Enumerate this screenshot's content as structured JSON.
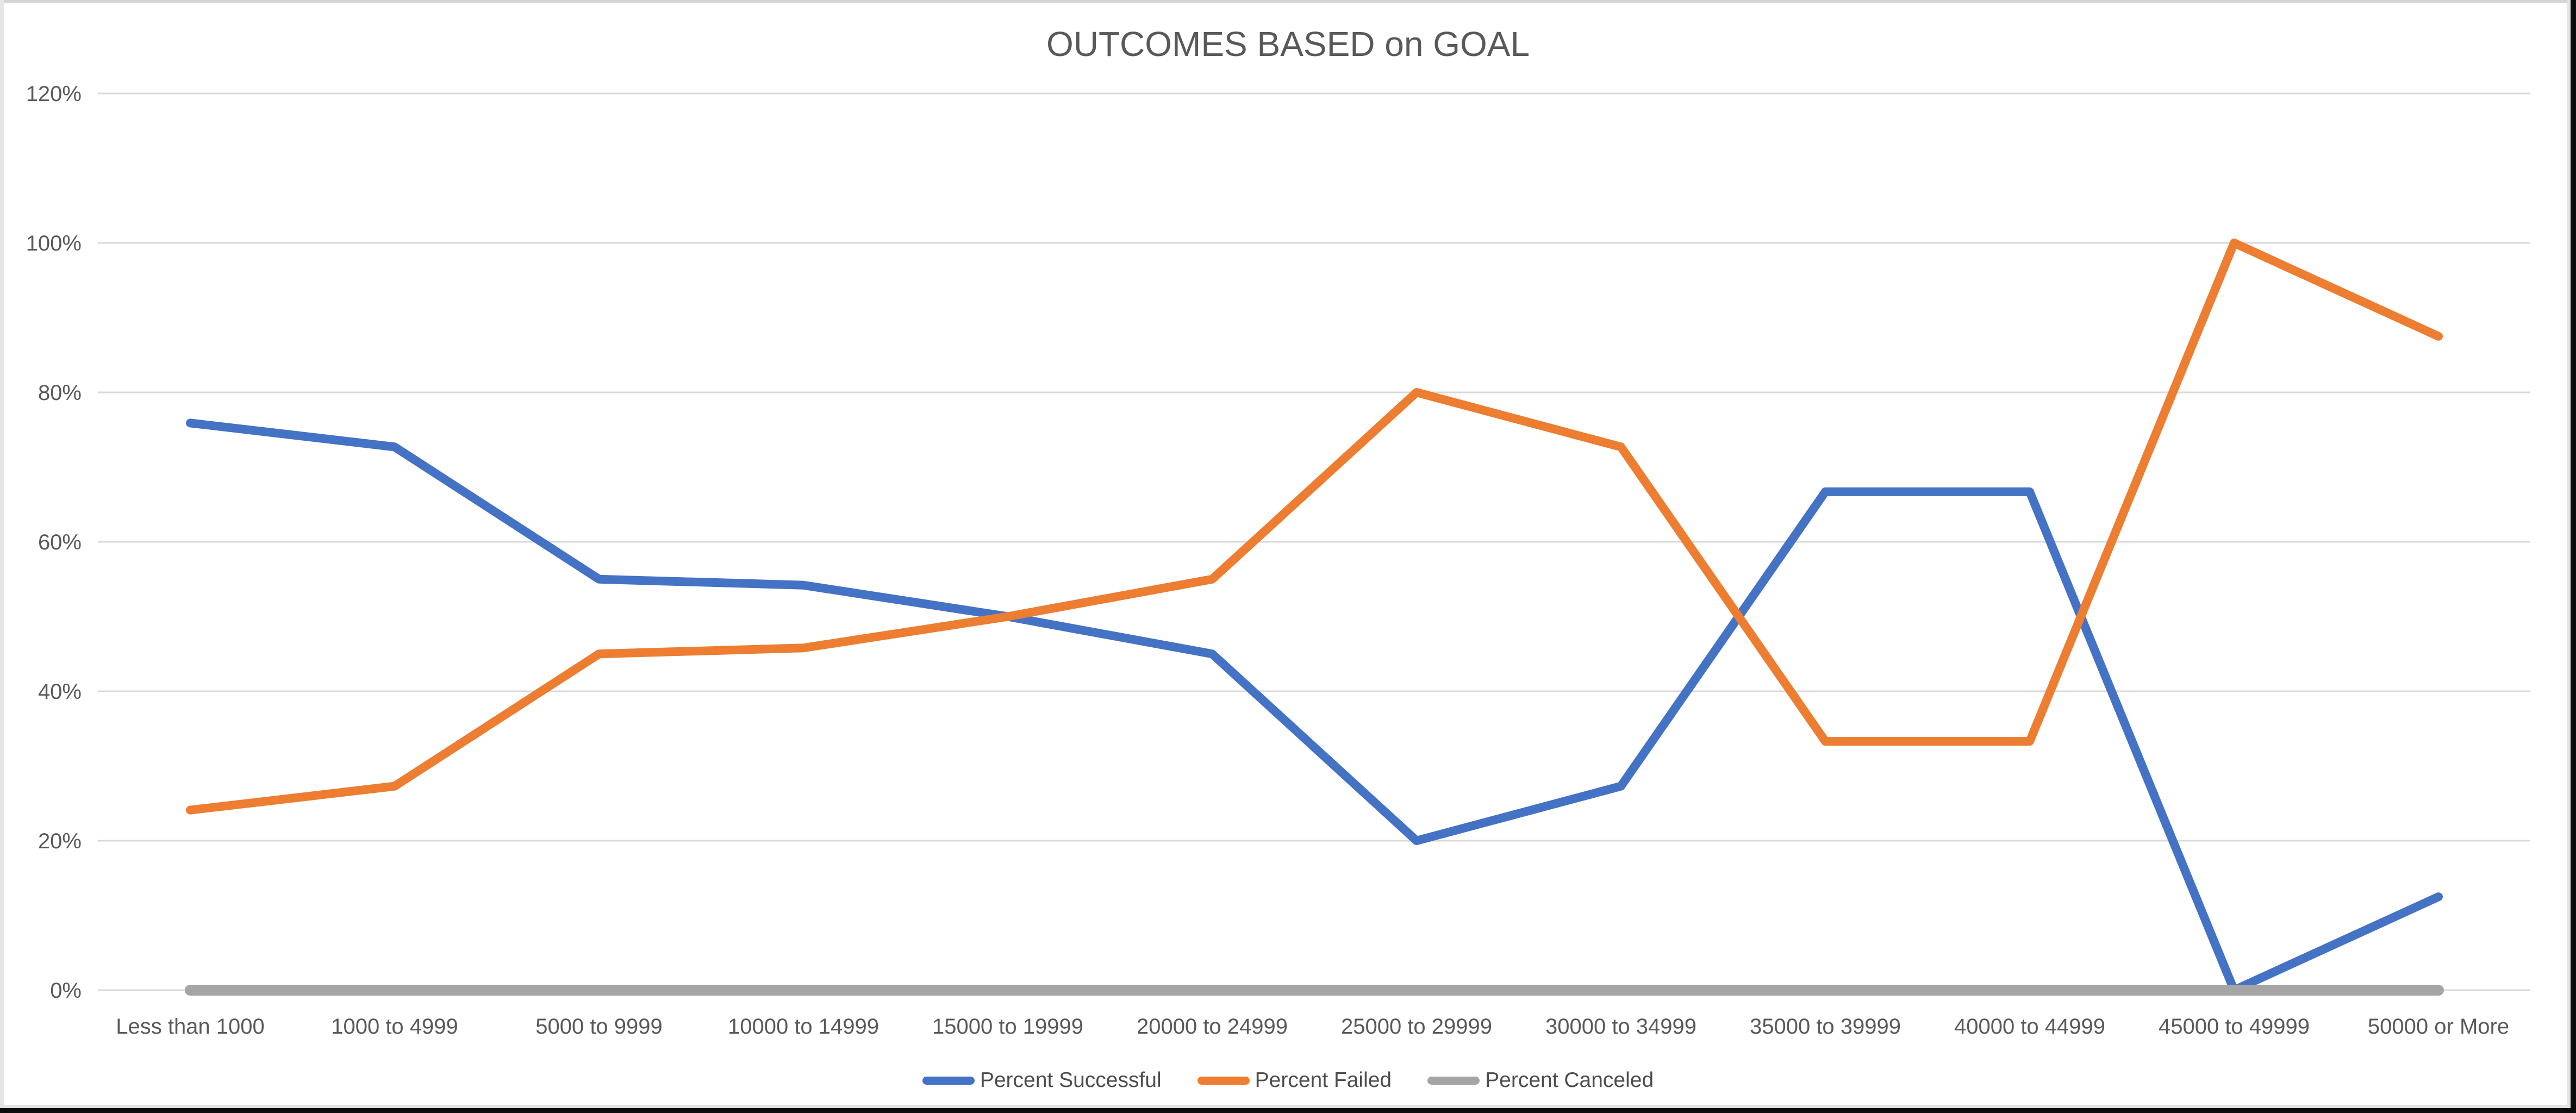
{
  "chart_title": "OUTCOMES BASED on GOAL",
  "chart_data": {
    "type": "line",
    "title": "OUTCOMES BASED on GOAL",
    "categories": [
      "Less  than 1000",
      "1000 to 4999",
      "5000  to 9999",
      "10000 to 14999",
      "15000 to 19999",
      "20000 to 24999",
      "25000 to 29999",
      "30000 to 34999",
      "35000 to 39999",
      "40000 to 44999",
      "45000 to 49999",
      "50000 or More"
    ],
    "series": [
      {
        "name": "Percent Successful",
        "color": "#4472C4",
        "values": [
          75.9,
          72.7,
          55,
          54.2,
          50,
          45,
          20,
          27.3,
          66.7,
          66.7,
          0,
          12.5
        ]
      },
      {
        "name": "Percent Failed",
        "color": "#ED7D31",
        "values": [
          24.1,
          27.3,
          45,
          45.8,
          50,
          55,
          80,
          72.7,
          33.3,
          33.3,
          100,
          87.5
        ]
      },
      {
        "name": "Percent Canceled",
        "color": "#A5A5A5",
        "values": [
          0,
          0,
          0,
          0,
          0,
          0,
          0,
          0,
          0,
          0,
          0,
          0
        ]
      }
    ],
    "y_axis": {
      "min": 0,
      "max": 120,
      "step": 20,
      "tick_labels": [
        "0%",
        "20%",
        "40%",
        "60%",
        "80%",
        "100%",
        "120%"
      ]
    },
    "grid": true,
    "gridline_color": "#D9D9D9",
    "legend_position": "bottom",
    "text_color": "#595959"
  }
}
